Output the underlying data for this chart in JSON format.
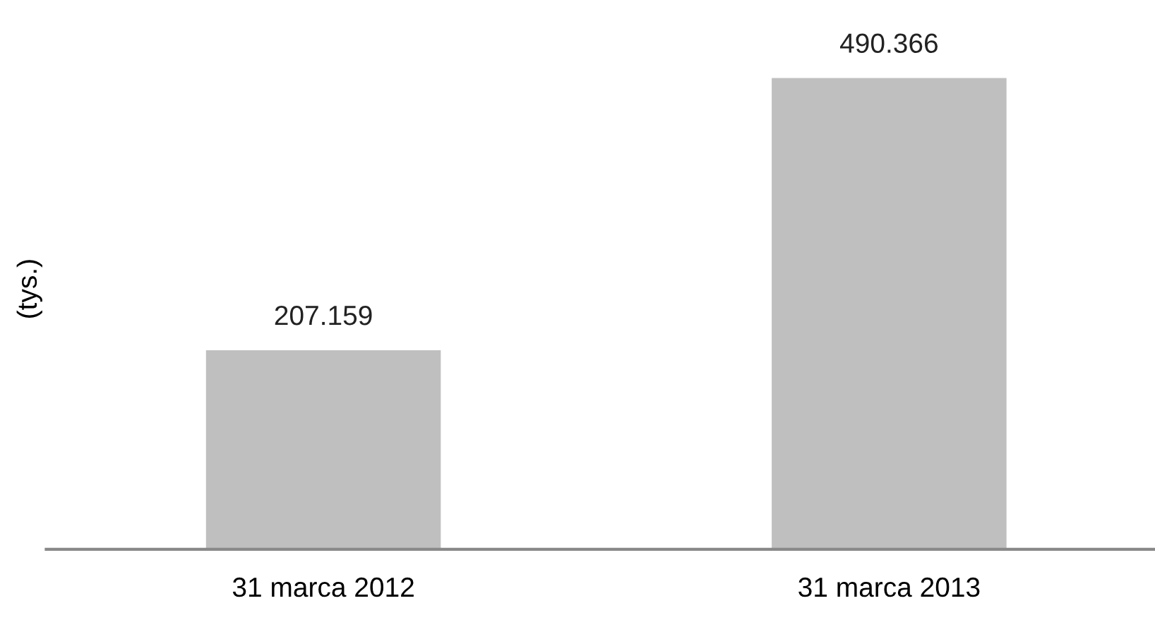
{
  "chart_data": {
    "type": "bar",
    "ylabel": "(tys.)",
    "categories": [
      "31 marca 2012",
      "31 marca 2013"
    ],
    "values": [
      207.159,
      490.366
    ],
    "color": "#bfbfbf",
    "data_labels": true,
    "grid": false,
    "legend": false
  }
}
